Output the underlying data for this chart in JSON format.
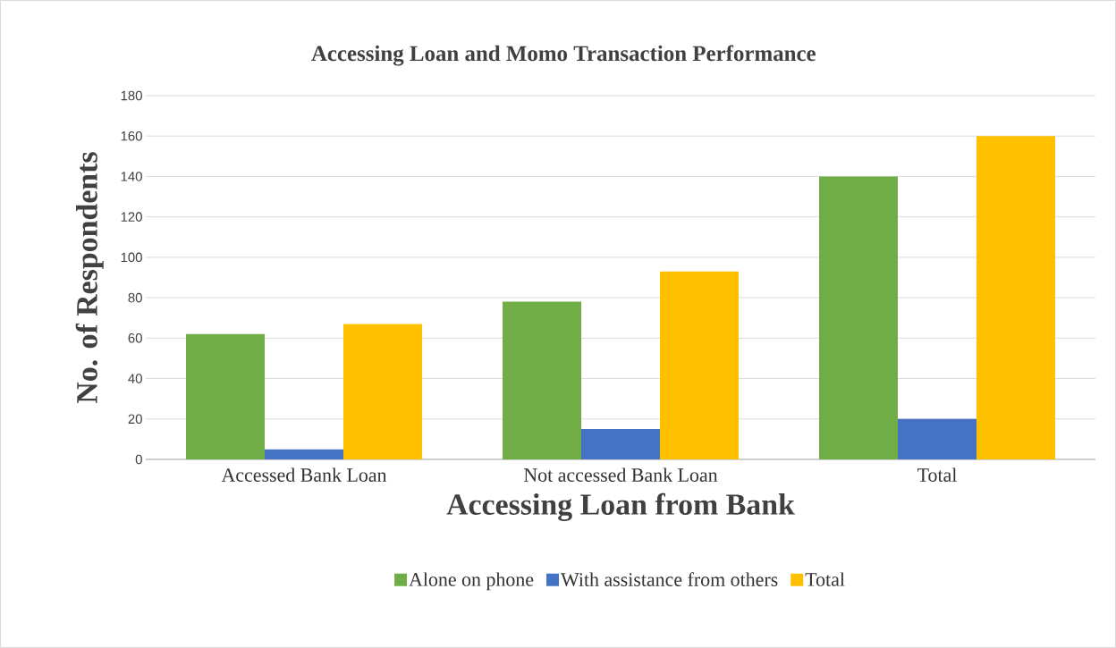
{
  "chart_data": {
    "type": "bar",
    "title": "Accessing Loan and Momo  Transaction Performance",
    "xlabel": "Accessing Loan from Bank",
    "ylabel": "No. of Respondents",
    "categories": [
      "Accessed Bank Loan",
      "Not accessed Bank Loan",
      "Total"
    ],
    "series": [
      {
        "name": "Alone on phone",
        "color": "#70ad47",
        "values": [
          62,
          78,
          140
        ]
      },
      {
        "name": "With assistance from others",
        "color": "#4472c4",
        "values": [
          5,
          15,
          20
        ]
      },
      {
        "name": "Total",
        "color": "#ffc000",
        "values": [
          67,
          93,
          160
        ]
      }
    ],
    "ylim": [
      0,
      180
    ],
    "yticks": [
      0,
      20,
      40,
      60,
      80,
      100,
      120,
      140,
      160,
      180
    ],
    "grid": "y",
    "legend": "bottom"
  }
}
